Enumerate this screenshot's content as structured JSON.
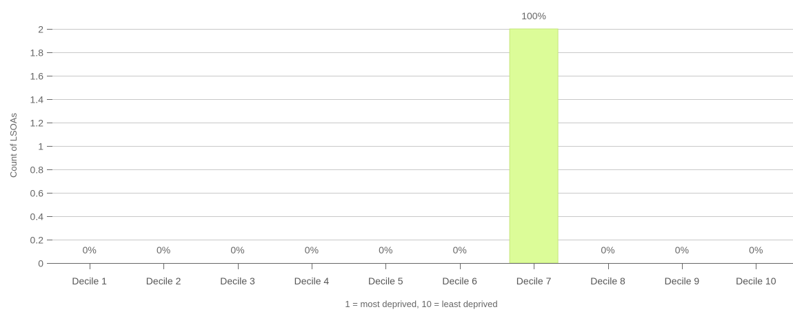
{
  "chart_data": {
    "type": "bar",
    "title": "",
    "xlabel": "1 = most deprived, 10 = least deprived",
    "ylabel": "Count of LSOAs",
    "categories": [
      "Decile 1",
      "Decile 2",
      "Decile 3",
      "Decile 4",
      "Decile 5",
      "Decile 6",
      "Decile 7",
      "Decile 8",
      "Decile 9",
      "Decile 10"
    ],
    "values": [
      0,
      0,
      0,
      0,
      0,
      0,
      2,
      0,
      0,
      0
    ],
    "data_labels": [
      "0%",
      "0%",
      "0%",
      "0%",
      "0%",
      "0%",
      "100%",
      "0%",
      "0%",
      "0%"
    ],
    "ylim": [
      0,
      2
    ],
    "yticks": [
      0,
      0.2,
      0.4,
      0.6,
      0.8,
      1,
      1.2,
      1.4,
      1.6,
      1.8,
      2
    ],
    "ytick_labels": [
      "0",
      "0.2",
      "0.4",
      "0.6",
      "0.8",
      "1",
      "1.2",
      "1.4",
      "1.6",
      "1.8",
      "2"
    ],
    "grid": true,
    "legend": "none",
    "colors": {
      "bar": "#dcfc98",
      "bar_stroke": "#c6e67c",
      "grid": "#c8c8c8",
      "axis": "#666666",
      "text": "#666666"
    }
  }
}
